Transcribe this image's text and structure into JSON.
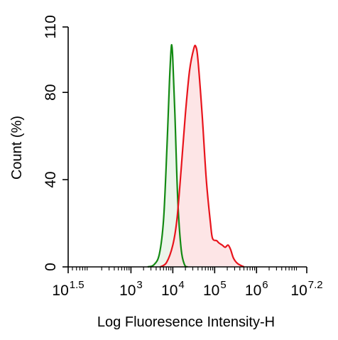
{
  "chart_data": {
    "type": "area",
    "title": "",
    "xlabel": "Log Fluoresence Intensity-H",
    "ylabel": "Count  (%)",
    "x_scale": "log10",
    "xlim_exponent": [
      1.5,
      7.2
    ],
    "ylim": [
      0,
      110
    ],
    "y_ticks": [
      0,
      40,
      80,
      110
    ],
    "x_ticks": [
      {
        "base": "10",
        "exp": "1.5",
        "value": 1.5
      },
      {
        "base": "10",
        "exp": "3",
        "value": 3
      },
      {
        "base": "10",
        "exp": "4",
        "value": 4
      },
      {
        "base": "10",
        "exp": "5",
        "value": 5
      },
      {
        "base": "10",
        "exp": "6",
        "value": 6
      },
      {
        "base": "10",
        "exp": "7.2",
        "value": 7.2
      }
    ],
    "grid": false,
    "legend": "none",
    "series": [
      {
        "color": "#138a13",
        "fill": "#e8f3e6",
        "points": [
          [
            3.4,
            0
          ],
          [
            3.55,
            1
          ],
          [
            3.68,
            6
          ],
          [
            3.78,
            22
          ],
          [
            3.86,
            55
          ],
          [
            3.92,
            85
          ],
          [
            3.96,
            100
          ],
          [
            3.98,
            101
          ],
          [
            4.0,
            95
          ],
          [
            4.05,
            70
          ],
          [
            4.12,
            30
          ],
          [
            4.2,
            8
          ],
          [
            4.28,
            1
          ],
          [
            4.35,
            0
          ]
        ]
      },
      {
        "color": "#e8141c",
        "fill": "#fde1e2",
        "points": [
          [
            3.7,
            0
          ],
          [
            3.85,
            2
          ],
          [
            4.0,
            10
          ],
          [
            4.1,
            22
          ],
          [
            4.2,
            45
          ],
          [
            4.3,
            70
          ],
          [
            4.4,
            90
          ],
          [
            4.5,
            100
          ],
          [
            4.55,
            101
          ],
          [
            4.6,
            95
          ],
          [
            4.7,
            70
          ],
          [
            4.8,
            40
          ],
          [
            4.9,
            20
          ],
          [
            4.95,
            13
          ],
          [
            5.05,
            12
          ],
          [
            5.1,
            11
          ],
          [
            5.18,
            10
          ],
          [
            5.25,
            9
          ],
          [
            5.32,
            10
          ],
          [
            5.38,
            8
          ],
          [
            5.45,
            4
          ],
          [
            5.55,
            1.5
          ],
          [
            5.7,
            0
          ]
        ]
      }
    ]
  }
}
